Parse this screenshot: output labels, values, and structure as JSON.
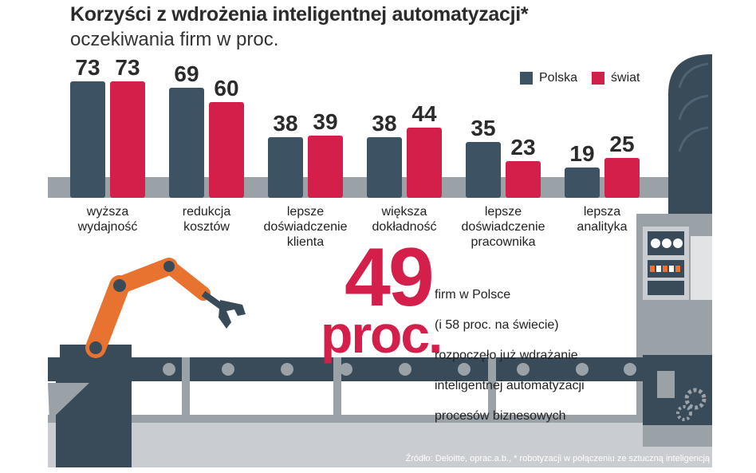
{
  "title": "Korzyści z wdrożenia inteligentnej automatyzacji*",
  "subtitle": "oczekiwania firm w proc.",
  "colors": {
    "polska": "#3d5262",
    "swiat": "#d41f4b",
    "accent": "#e8722f",
    "panel": "#c9ccd0",
    "dark": "#394a58"
  },
  "chart_data": {
    "type": "bar",
    "title": "Korzyści z wdrożenia inteligentnej automatyzacji*",
    "subtitle": "oczekiwania firm w proc.",
    "categories": [
      "wyższa wydajność",
      "redukcja kosztów",
      "lepsze doświadczenie klienta",
      "większa dokładność",
      "lepsze doświadczenie pracownika",
      "lepsza analityka"
    ],
    "category_lines": [
      [
        "wyższa",
        "wydajność"
      ],
      [
        "redukcja",
        "kosztów"
      ],
      [
        "lepsze",
        "doświadczenie",
        "klienta"
      ],
      [
        "większa",
        "dokładność"
      ],
      [
        "lepsze",
        "doświadczenie",
        "pracownika"
      ],
      [
        "lepsza",
        "analityka"
      ]
    ],
    "series": [
      {
        "name": "Polska",
        "color": "#3d5262",
        "values": [
          73,
          69,
          38,
          38,
          35,
          19
        ]
      },
      {
        "name": "świat",
        "color": "#d41f4b",
        "values": [
          73,
          60,
          39,
          44,
          23,
          25
        ]
      }
    ],
    "ylim": [
      0,
      80
    ],
    "grid": false,
    "data_labels": true,
    "legend_position": "top-right"
  },
  "highlight": {
    "number": "49",
    "unit": "proc.",
    "text_lines": [
      "firm w Polsce",
      "(i 58 proc. na świecie)",
      "rozpoczęło już wdrażanie",
      "inteligentnej automatyzacji",
      "procesów biznesowych"
    ]
  },
  "source": "Źródło: Deloitte, oprac.a.b., * robotyzacji w połączeniu ze sztuczną inteligencją",
  "illustration": {
    "icons": [
      "robot-arm-icon",
      "conveyor-belt-icon",
      "machine-icon",
      "gear-icon"
    ]
  }
}
